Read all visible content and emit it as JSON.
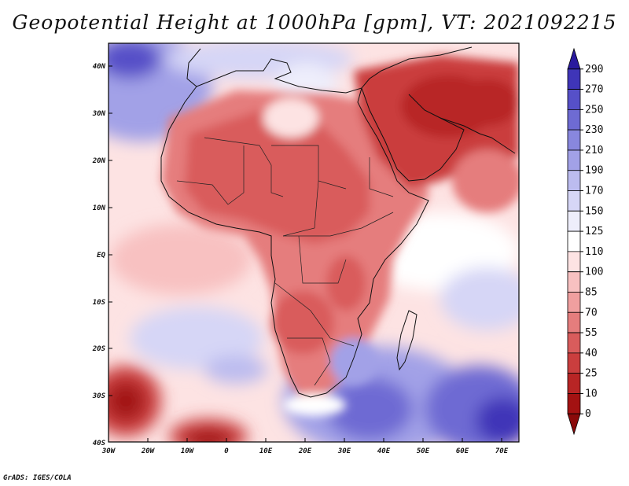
{
  "title": "Geopotential Height at 1000hPa [gpm], VT: 2021092215",
  "credit": "GrADS: IGES/COLA",
  "map": {
    "lon_range": [
      -30,
      75
    ],
    "lat_range": [
      -40,
      45
    ],
    "lat_ticks": [
      "40N",
      "30N",
      "20N",
      "10N",
      "EQ",
      "10S",
      "20S",
      "30S",
      "40S"
    ],
    "lon_ticks": [
      "30W",
      "20W",
      "10W",
      "0",
      "10E",
      "20E",
      "30E",
      "40E",
      "50E",
      "60E",
      "70E"
    ]
  },
  "colorbar": {
    "levels": [
      "290",
      "270",
      "250",
      "230",
      "210",
      "190",
      "170",
      "150",
      "125",
      "110",
      "100",
      "85",
      "70",
      "55",
      "40",
      "25",
      "10",
      "0"
    ],
    "colors": [
      "#2a1a9e",
      "#3f35b8",
      "#5650c8",
      "#6e6bd3",
      "#8887de",
      "#a2a1e7",
      "#bcbcef",
      "#d6d6f6",
      "#eeeefb",
      "#ffffff",
      "#fde3e3",
      "#f8c1c1",
      "#f09f9f",
      "#e57d7d",
      "#d95c5c",
      "#ca3e3e",
      "#b82525",
      "#a31212",
      "#8a0a0a"
    ]
  }
}
